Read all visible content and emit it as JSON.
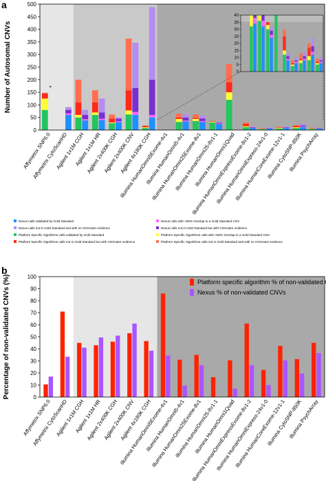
{
  "panels": {
    "a": {
      "label": "a"
    },
    "b": {
      "label": "b"
    }
  },
  "colors": {
    "panel_bg_light": "#e6e6e6",
    "panel_bg_mid": "#c9c9c9",
    "panel_bg_dark": "#a9a9a9",
    "nexus_validated": "#1e90ff",
    "nexus_overlap": "#ff66ff",
    "nexus_notgold_cnvnator": "#7b2fd0",
    "nexus_notgold_nocnvnator": "#b58cf0",
    "platform_validated": "#22c55e",
    "platform_overlap": "#ffff33",
    "platform_notgold_cnvnator": "#ff2a1a",
    "platform_notgold_nocnvnator": "#ff6f4f",
    "bar_red": "#ff2200",
    "bar_purple": "#aa55ff"
  },
  "chart_data": [
    {
      "type": "bar",
      "stacked": true,
      "title": "",
      "xlabel": "",
      "ylabel": "Number of Autosomal CNVs",
      "ylim": [
        0,
        500
      ],
      "yticks": [
        0,
        50,
        100,
        150,
        200,
        250,
        300,
        350,
        400,
        450,
        500
      ],
      "categories": [
        "Affymetrix SNP6.0",
        "Affymetrix CytoScanHD",
        "Agilent 1x1M CGH",
        "Agilent 1x1M HR",
        "Agilent 2x400K CGH",
        "Agilent 2x400K CNV",
        "Agilent 4x180K CGH",
        "Illumina HumanOmni5Exome-4v1",
        "Illumina HumanOmni5-4v1",
        "Illumina HumanOmni25Exome-8v1",
        "Illumina HumanOmni25-8v1-1",
        "Illumina HumanOmni1Quad",
        "Illumina HumanOmniExpressExome-8v1-2",
        "Illumina HumanOmniExpress-24v1-0",
        "Illumina HumanCoreExome-12v1-1",
        "Illumina CytoSNP-850K",
        "Illumina PsychArray"
      ],
      "series": [
        {
          "name": "Nexus calls validated by Gold Standard",
          "group": "nexus",
          "values": [
            0,
            60,
            38,
            40,
            32,
            60,
            50,
            0,
            34,
            32,
            24,
            0,
            8,
            6,
            8,
            12,
            6
          ]
        },
        {
          "name": "Nexus calls with <50% Overlap to a Gold Standard CNV",
          "group": "nexus",
          "values": [
            0,
            6,
            5,
            5,
            3,
            12,
            10,
            0,
            4,
            4,
            2,
            0,
            1,
            1,
            1,
            2,
            1
          ]
        },
        {
          "name": "Nexus calls not in Gold Standard but with CNVnator evidence",
          "group": "nexus",
          "values": [
            0,
            14,
            17,
            25,
            10,
            95,
            140,
            0,
            12,
            10,
            3,
            0,
            2,
            1,
            2,
            4,
            1
          ]
        },
        {
          "name": "Nexus calls not in Gold Standard and with no CNVnator evidence",
          "group": "nexus",
          "values": [
            0,
            11,
            20,
            55,
            5,
            180,
            288,
            0,
            13,
            12,
            3,
            0,
            2,
            2,
            3,
            6,
            2
          ]
        },
        {
          "name": "Platform Specific Algorithms calls validated by Gold Standard",
          "group": "platform",
          "values": [
            80,
            0,
            50,
            60,
            27,
            62,
            8,
            0,
            32,
            36,
            30,
            120,
            12,
            4,
            6,
            8,
            5
          ]
        },
        {
          "name": "Platform Specific Algorithms calls with <50% Overlap to a Gold Standard CNV",
          "group": "platform",
          "values": [
            45,
            0,
            10,
            10,
            3,
            16,
            3,
            0,
            12,
            8,
            3,
            30,
            3,
            1,
            2,
            3,
            1
          ]
        },
        {
          "name": "Platform Specific Algorithms calls not in Gold Standard but with CNVnator evidence",
          "group": "platform",
          "values": [
            20,
            0,
            50,
            40,
            15,
            80,
            6,
            0,
            6,
            4,
            2,
            40,
            10,
            1,
            1,
            6,
            1
          ]
        },
        {
          "name": "Platform Specific Algorithms calls not in Gold Standard and with no CNVnator evidence",
          "group": "platform",
          "values": [
            3,
            0,
            90,
            48,
            17,
            205,
            1,
            0,
            15,
            14,
            0,
            72,
            5,
            2,
            4,
            3,
            2
          ]
        }
      ],
      "group_order": [
        "platform",
        "nexus"
      ],
      "annotation": "*",
      "inset": {
        "ylim": [
          0,
          40
        ],
        "yticks": [
          0,
          5,
          10,
          15,
          20,
          25,
          30,
          35,
          40
        ]
      },
      "background_bands": [
        {
          "from_category": 0,
          "to_category": 1,
          "shade": "light"
        },
        {
          "from_category": 2,
          "to_category": 6,
          "shade": "mid"
        },
        {
          "from_category": 7,
          "to_category": 16,
          "shade": "dark"
        }
      ]
    },
    {
      "type": "bar",
      "title": "",
      "xlabel": "",
      "ylabel": "Percentage of non-validated CNVs (%)",
      "ylim": [
        0,
        100
      ],
      "yticks": [
        0,
        10,
        20,
        30,
        40,
        50,
        60,
        70,
        80,
        90,
        100
      ],
      "categories": [
        "Affymetrix SNP6.0",
        "Affymetrix CytoScanHD",
        "Agilent 1x1M CGH",
        "Agilent 1x1M HR",
        "Agilent 2x400K CGH",
        "Agilent 2x400K CNV",
        "Agilent 4x180K CGH",
        "Illumina HumanOmni5Exome-4v1",
        "Illumina HumanOmni5-4v1",
        "Illumina HumanOmni25Exome-8v1",
        "Illumina HumanOmni25-8v1-1",
        "Illumina HumanOmni1Quad",
        "Illumina HumanOmniExpressExome-8v1-2",
        "Illumina HumanOmniExpress-24v1-0",
        "Illumina HumanCoreExome-12v1-1",
        "Illumina CytoSNP-850K",
        "Illumina PsychArray"
      ],
      "series": [
        {
          "name": "Platform specific algorithm % of non-validated CNVs",
          "values": [
            10.5,
            71,
            45,
            43,
            46,
            53,
            46.5,
            86,
            31,
            35,
            16.5,
            30.5,
            61,
            22.5,
            42.5,
            31.5,
            45
          ]
        },
        {
          "name": "Nexus % of non-validated CNVs",
          "values": [
            17,
            33.5,
            41,
            49.5,
            51,
            61,
            38.5,
            34.5,
            9.5,
            26.5,
            0,
            7,
            26.5,
            10,
            30.5,
            19.5,
            36.5
          ]
        }
      ],
      "legend_position": "top-right",
      "background_bands": [
        {
          "from_category": 0,
          "to_category": 1,
          "shade": "white"
        },
        {
          "from_category": 2,
          "to_category": 6,
          "shade": "light"
        },
        {
          "from_category": 7,
          "to_category": 16,
          "shade": "dark"
        }
      ]
    }
  ]
}
